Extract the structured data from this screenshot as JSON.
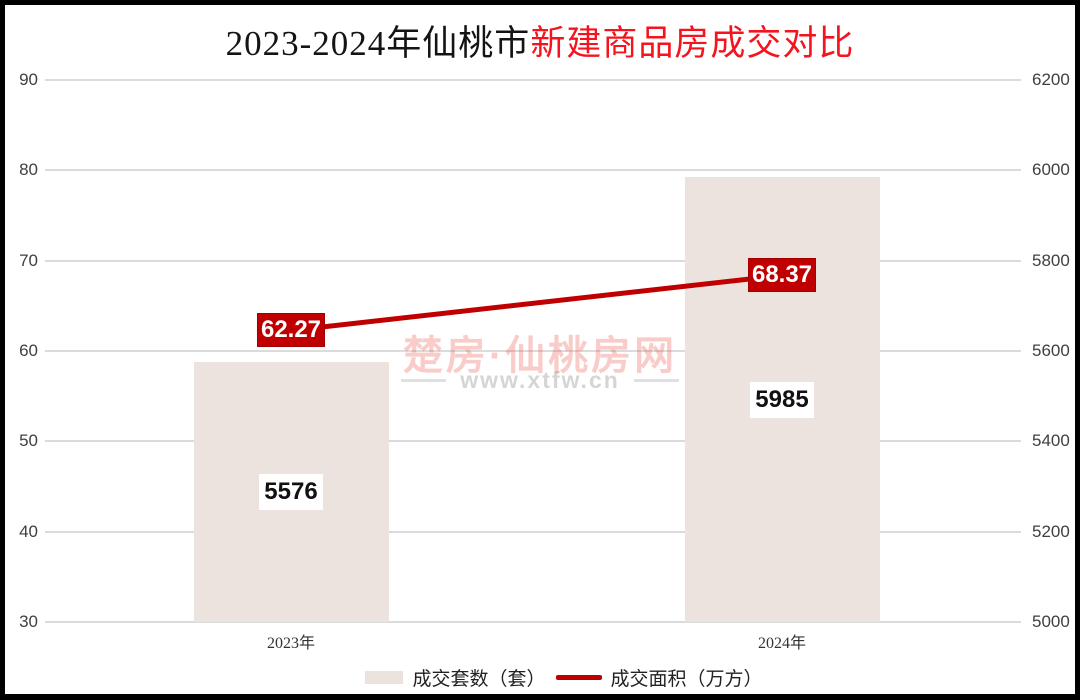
{
  "title": {
    "prefix": "2023-2024年仙桃市",
    "highlight": "新建商品房成交对比"
  },
  "watermark": {
    "brand": "楚房·仙桃房网",
    "url": "www.xtfw.cn"
  },
  "legend": {
    "items": [
      {
        "label": "成交套数（套）",
        "swatch": "bar-swatch",
        "color": "#EDE3DE"
      },
      {
        "label": "成交面积（万方）",
        "swatch": "line-swatch",
        "color": "#C00000"
      }
    ]
  },
  "colors": {
    "bar_fill": "#EDE3DE",
    "line_red": "#C00000",
    "title_red": "#F5141E",
    "gridline": "#DBDBDB",
    "frame": "#000000"
  },
  "chart_data": {
    "type": "bar",
    "subtype": "bar-line-combo",
    "title": "2023-2024年仙桃市新建商品房成交对比",
    "categories": [
      "2023年",
      "2024年"
    ],
    "series": [
      {
        "name": "成交套数（套）",
        "type": "bar",
        "axis": "right",
        "values": [
          5576,
          5985
        ],
        "color": "#EDE3DE"
      },
      {
        "name": "成交面积（万方）",
        "type": "line",
        "axis": "left",
        "values": [
          62.27,
          68.37
        ],
        "color": "#C00000"
      }
    ],
    "left_axis": {
      "min": 30,
      "max": 90,
      "step": 10,
      "ticks": [
        30,
        40,
        50,
        60,
        70,
        80,
        90
      ]
    },
    "right_axis": {
      "min": 5000,
      "max": 6200,
      "step": 200,
      "ticks": [
        5000,
        5200,
        5400,
        5600,
        5800,
        6000,
        6200
      ]
    },
    "grid": true,
    "legend_position": "bottom",
    "data_labels": {
      "bar": [
        "5576",
        "5985"
      ],
      "line": [
        "62.27",
        "68.37"
      ]
    }
  }
}
